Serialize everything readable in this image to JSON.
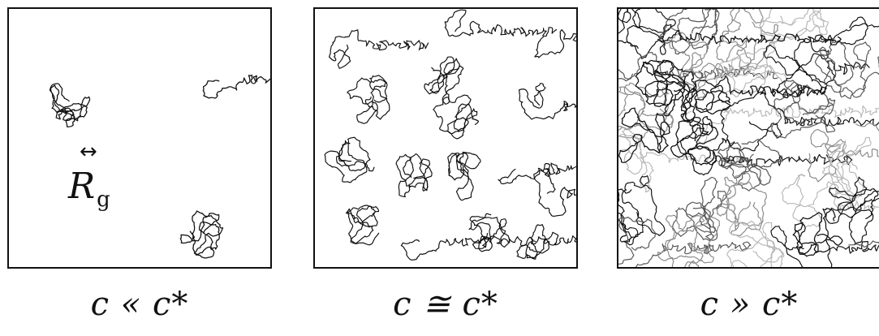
{
  "panels": [
    {
      "caption": "c « c*",
      "regime": "dilute",
      "chains": 3,
      "chain_shades": [
        "#111111"
      ]
    },
    {
      "caption": "c ≅ c*",
      "regime": "overlap",
      "chains": 16,
      "chain_shades": [
        "#111111"
      ]
    },
    {
      "caption": "c » c*",
      "regime": "semidilute",
      "chains": 30,
      "chain_shades": [
        "#111111",
        "#555555",
        "#8a8a8a",
        "#b8b8b8"
      ]
    }
  ],
  "size_marker": {
    "arrow": "↔",
    "symbol": "R",
    "subscript": "g"
  },
  "icons": [
    "double-headed-arrow-icon"
  ]
}
